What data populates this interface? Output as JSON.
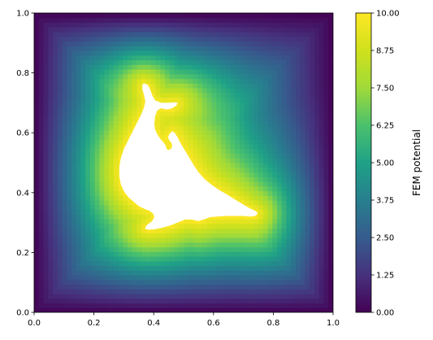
{
  "chart_data": {
    "type": "heatmap",
    "title": "",
    "xlabel": "",
    "ylabel": "",
    "xlim": [
      0.0,
      1.0
    ],
    "ylim": [
      0.0,
      1.0
    ],
    "x_ticks": [
      "0.0",
      "0.2",
      "0.4",
      "0.6",
      "0.8",
      "1.0"
    ],
    "y_ticks": [
      "0.0",
      "0.2",
      "0.4",
      "0.6",
      "0.8",
      "1.0"
    ],
    "colormap": "viridis",
    "colorbar": {
      "label": "FEM potential",
      "min": 0.0,
      "max": 10.0,
      "ticks": [
        "0.00",
        "1.25",
        "2.50",
        "3.75",
        "5.00",
        "6.25",
        "7.50",
        "8.75",
        "10.00"
      ]
    },
    "field": {
      "description_value_at_boundary": 0.0,
      "value_at_dolphin_boundary": 10.0
    },
    "dolphin_outline": [
      [
        0.368,
        0.765
      ],
      [
        0.38,
        0.76
      ],
      [
        0.388,
        0.745
      ],
      [
        0.395,
        0.725
      ],
      [
        0.405,
        0.708
      ],
      [
        0.425,
        0.7
      ],
      [
        0.45,
        0.7
      ],
      [
        0.47,
        0.702
      ],
      [
        0.48,
        0.7
      ],
      [
        0.475,
        0.69
      ],
      [
        0.458,
        0.68
      ],
      [
        0.44,
        0.678
      ],
      [
        0.425,
        0.682
      ],
      [
        0.412,
        0.675
      ],
      [
        0.405,
        0.655
      ],
      [
        0.402,
        0.63
      ],
      [
        0.405,
        0.61
      ],
      [
        0.412,
        0.595
      ],
      [
        0.422,
        0.58
      ],
      [
        0.432,
        0.568
      ],
      [
        0.44,
        0.558
      ],
      [
        0.442,
        0.548
      ],
      [
        0.448,
        0.542
      ],
      [
        0.458,
        0.546
      ],
      [
        0.462,
        0.555
      ],
      [
        0.46,
        0.565
      ],
      [
        0.452,
        0.575
      ],
      [
        0.448,
        0.585
      ],
      [
        0.452,
        0.595
      ],
      [
        0.462,
        0.605
      ],
      [
        0.47,
        0.6
      ],
      [
        0.48,
        0.585
      ],
      [
        0.49,
        0.565
      ],
      [
        0.505,
        0.54
      ],
      [
        0.52,
        0.515
      ],
      [
        0.535,
        0.49
      ],
      [
        0.55,
        0.468
      ],
      [
        0.57,
        0.445
      ],
      [
        0.595,
        0.425
      ],
      [
        0.62,
        0.408
      ],
      [
        0.648,
        0.392
      ],
      [
        0.675,
        0.375
      ],
      [
        0.7,
        0.36
      ],
      [
        0.72,
        0.348
      ],
      [
        0.738,
        0.34
      ],
      [
        0.748,
        0.332
      ],
      [
        0.742,
        0.323
      ],
      [
        0.725,
        0.32
      ],
      [
        0.7,
        0.322
      ],
      [
        0.672,
        0.322
      ],
      [
        0.64,
        0.322
      ],
      [
        0.612,
        0.32
      ],
      [
        0.588,
        0.318
      ],
      [
        0.568,
        0.31
      ],
      [
        0.548,
        0.305
      ],
      [
        0.528,
        0.31
      ],
      [
        0.505,
        0.31
      ],
      [
        0.48,
        0.3
      ],
      [
        0.455,
        0.29
      ],
      [
        0.43,
        0.283
      ],
      [
        0.405,
        0.278
      ],
      [
        0.382,
        0.276
      ],
      [
        0.37,
        0.28
      ],
      [
        0.378,
        0.292
      ],
      [
        0.395,
        0.305
      ],
      [
        0.402,
        0.318
      ],
      [
        0.398,
        0.33
      ],
      [
        0.385,
        0.34
      ],
      [
        0.37,
        0.345
      ],
      [
        0.35,
        0.355
      ],
      [
        0.332,
        0.37
      ],
      [
        0.315,
        0.385
      ],
      [
        0.3,
        0.405
      ],
      [
        0.29,
        0.428
      ],
      [
        0.285,
        0.455
      ],
      [
        0.285,
        0.485
      ],
      [
        0.29,
        0.515
      ],
      [
        0.3,
        0.545
      ],
      [
        0.315,
        0.575
      ],
      [
        0.33,
        0.605
      ],
      [
        0.345,
        0.635
      ],
      [
        0.358,
        0.66
      ],
      [
        0.368,
        0.685
      ],
      [
        0.372,
        0.705
      ],
      [
        0.368,
        0.725
      ],
      [
        0.362,
        0.745
      ],
      [
        0.362,
        0.76
      ]
    ]
  }
}
